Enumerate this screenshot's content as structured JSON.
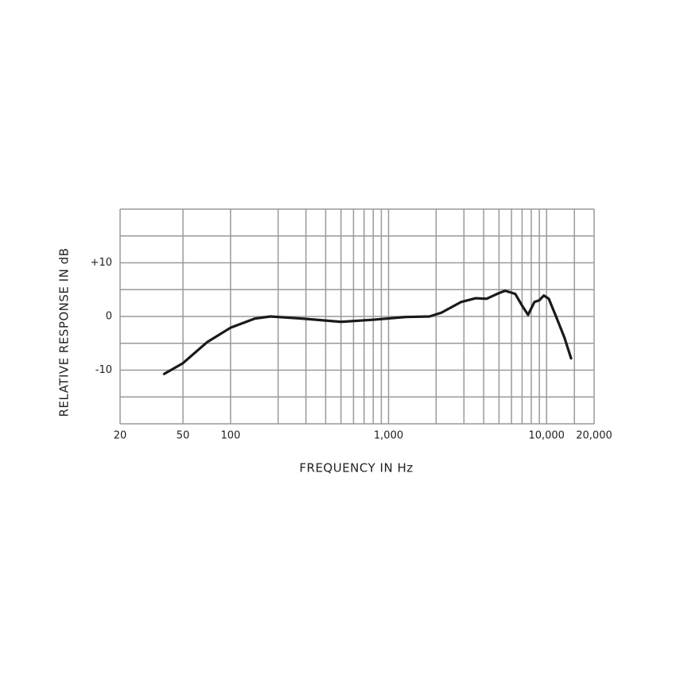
{
  "chart_data": {
    "type": "line",
    "xlabel": "FREQUENCY IN Hz",
    "ylabel": "RELATIVE RESPONSE IN dB",
    "xscale": "log",
    "xlim": [
      20,
      20000
    ],
    "ylim": [
      -20,
      20
    ],
    "xticks": [
      20,
      50,
      100,
      {
        "value": 1000,
        "label": "1,000"
      },
      {
        "value": 10000,
        "label": "10,000"
      },
      {
        "value": 20000,
        "label": "20,000"
      }
    ],
    "yticks": [
      {
        "value": 10,
        "label": "+10"
      },
      0,
      -10
    ],
    "xgrid": [
      20,
      50,
      100,
      200,
      300,
      400,
      500,
      600,
      700,
      800,
      900,
      1000,
      2000,
      3000,
      4000,
      5000,
      6000,
      7000,
      8000,
      9000,
      10000,
      15000,
      20000
    ],
    "ygrid": [
      20,
      15,
      10,
      5,
      0,
      -5,
      -10,
      -15,
      -20
    ],
    "grid": true,
    "series": [
      {
        "color": "#1a1a1a",
        "x": [
          38,
          50,
          71,
          100,
          142,
          179,
          284,
          500,
          806,
          1280,
          1815,
          2160,
          2880,
          3560,
          4180,
          4860,
          5460,
          6340,
          7040,
          7640,
          8380,
          8980,
          9620,
          10330,
          11590,
          13000,
          14290
        ],
        "values": [
          -10.7,
          -8.7,
          -4.8,
          -2.1,
          -0.4,
          0,
          -0.4,
          -1.0,
          -0.6,
          -0.1,
          0,
          0.7,
          2.7,
          3.4,
          3.3,
          4.2,
          4.8,
          4.2,
          1.9,
          0.3,
          2.7,
          3.0,
          3.9,
          3.3,
          -0.3,
          -4.0,
          -7.8
        ]
      }
    ]
  }
}
